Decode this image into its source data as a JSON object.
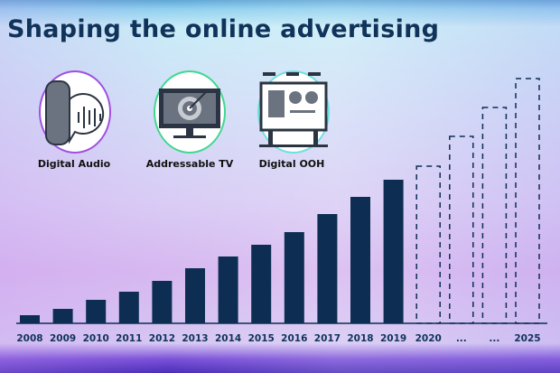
{
  "title": "Shaping the online advertising",
  "channels": [
    {
      "label": "Digital Audio",
      "icon": "smart-speaker-icon",
      "ring": "#a04fe0"
    },
    {
      "label": "Addressable TV",
      "icon": "tv-target-icon",
      "ring": "#3fd890"
    },
    {
      "label": "Digital OOH",
      "icon": "billboard-icon",
      "ring": "#6fe0e0"
    }
  ],
  "chart_data": {
    "type": "bar",
    "title": "",
    "xlabel": "",
    "ylabel": "",
    "categories": [
      "2008",
      "2009",
      "2010",
      "2011",
      "2012",
      "2013",
      "2014",
      "2015",
      "2016",
      "2017",
      "2018",
      "2019",
      "2020",
      "...",
      "...",
      "2025"
    ],
    "values": [
      9,
      16,
      26,
      35,
      47,
      61,
      74,
      87,
      101,
      121,
      140,
      159,
      174,
      207,
      239,
      271
    ],
    "projected": [
      false,
      false,
      false,
      false,
      false,
      false,
      false,
      false,
      false,
      false,
      false,
      false,
      true,
      true,
      true,
      true
    ],
    "ylim": [
      0,
      300
    ],
    "grid": false,
    "bar_color": "#0d2e52"
  }
}
